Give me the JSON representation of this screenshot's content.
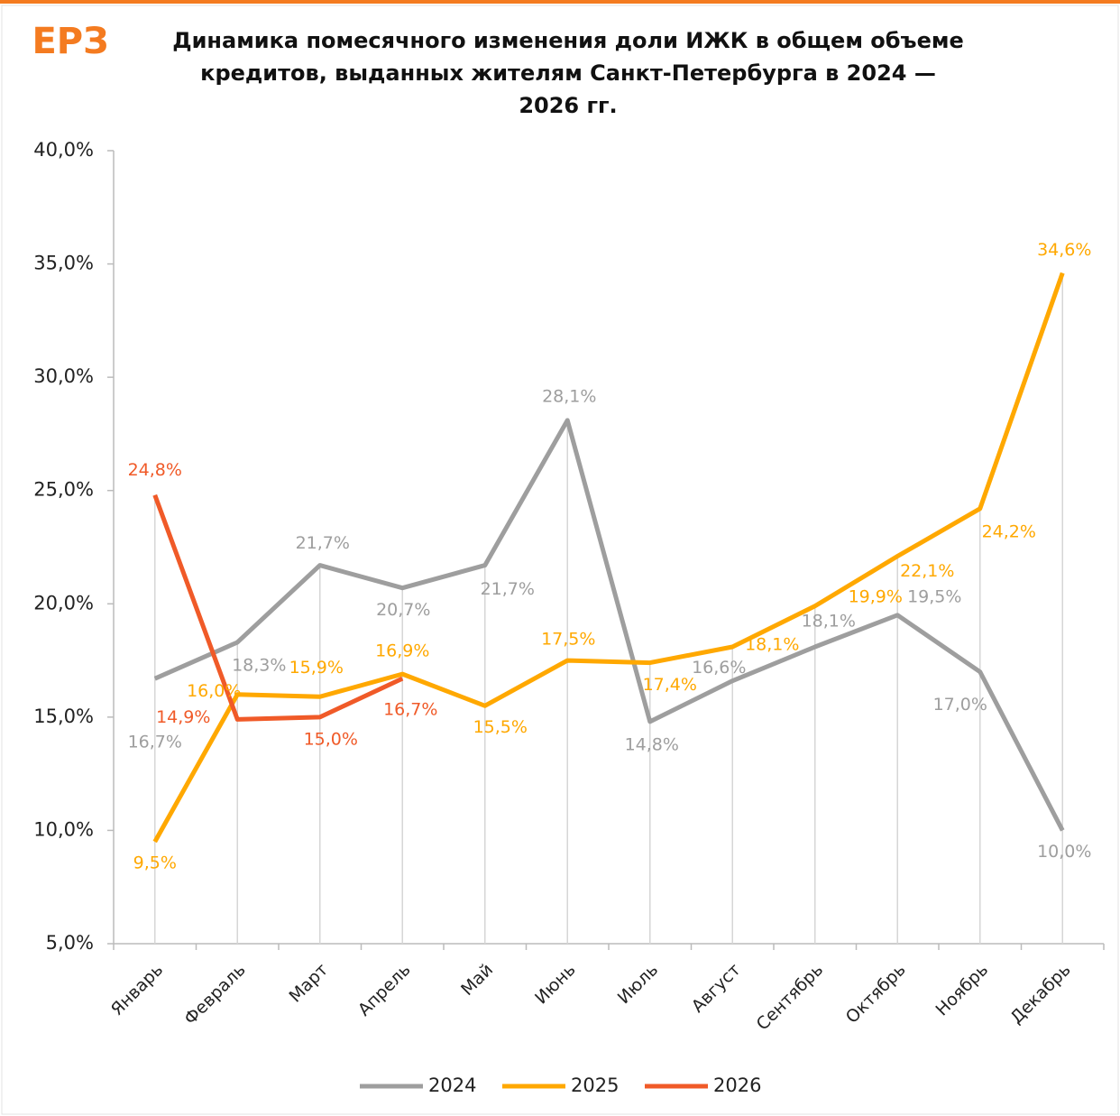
{
  "chart_data": {
    "type": "line",
    "logo": "ЕРЗ",
    "title": [
      "Динамика помесячного изменения доли ИЖК в общем объеме",
      "кредитов, выданных жителям Санкт-Петербурга  в 2024 —",
      "2026 гг."
    ],
    "categories": [
      "Январь",
      "Февраль",
      "Март",
      "Апрель",
      "Май",
      "Июнь",
      "Июль",
      "Август",
      "Сентябрь",
      "Октябрь",
      "Ноябрь",
      "Декабрь"
    ],
    "series": [
      {
        "name": "2024",
        "color": "#9e9e9e",
        "values": [
          16.7,
          18.3,
          21.7,
          20.7,
          21.7,
          28.1,
          14.8,
          16.6,
          18.1,
          19.5,
          17.0,
          10.0
        ],
        "value_labels": [
          "16,7%",
          "18,3%",
          "21,7%",
          "20,7%",
          "21,7%",
          "28,1%",
          "14,8%",
          "16,6%",
          "18,1%",
          "19,5%",
          "17,0%",
          "10,0%"
        ]
      },
      {
        "name": "2025",
        "color": "#ffa800",
        "values": [
          9.5,
          16.0,
          15.9,
          16.9,
          15.5,
          17.5,
          17.4,
          18.1,
          19.9,
          22.1,
          24.2,
          34.6
        ],
        "value_labels": [
          "9,5%",
          "16,0%",
          "15,9%",
          "16,9%",
          "15,5%",
          "17,5%",
          "17,4%",
          "18,1%",
          "19,9%",
          "22,1%",
          "24,2%",
          "34,6%"
        ]
      },
      {
        "name": "2026",
        "color": "#f05a28",
        "values": [
          24.8,
          14.9,
          15.0,
          16.7,
          null,
          null,
          null,
          null,
          null,
          null,
          null,
          null
        ],
        "value_labels": [
          "24,8%",
          "14,9%",
          "15,0%",
          "16,7%",
          null,
          null,
          null,
          null,
          null,
          null,
          null,
          null
        ]
      }
    ],
    "ylim": [
      5,
      40
    ],
    "yticks": [
      {
        "value": 5,
        "label": "5,0%"
      },
      {
        "value": 10,
        "label": "10,0%"
      },
      {
        "value": 15,
        "label": "15,0%"
      },
      {
        "value": 20,
        "label": "20,0%"
      },
      {
        "value": 25,
        "label": "25,0%"
      },
      {
        "value": 30,
        "label": "30,0%"
      },
      {
        "value": 35,
        "label": "35,0%"
      },
      {
        "value": 40,
        "label": "40,0%"
      }
    ],
    "grid": false,
    "drop_lines": true,
    "legend": "bottom"
  }
}
